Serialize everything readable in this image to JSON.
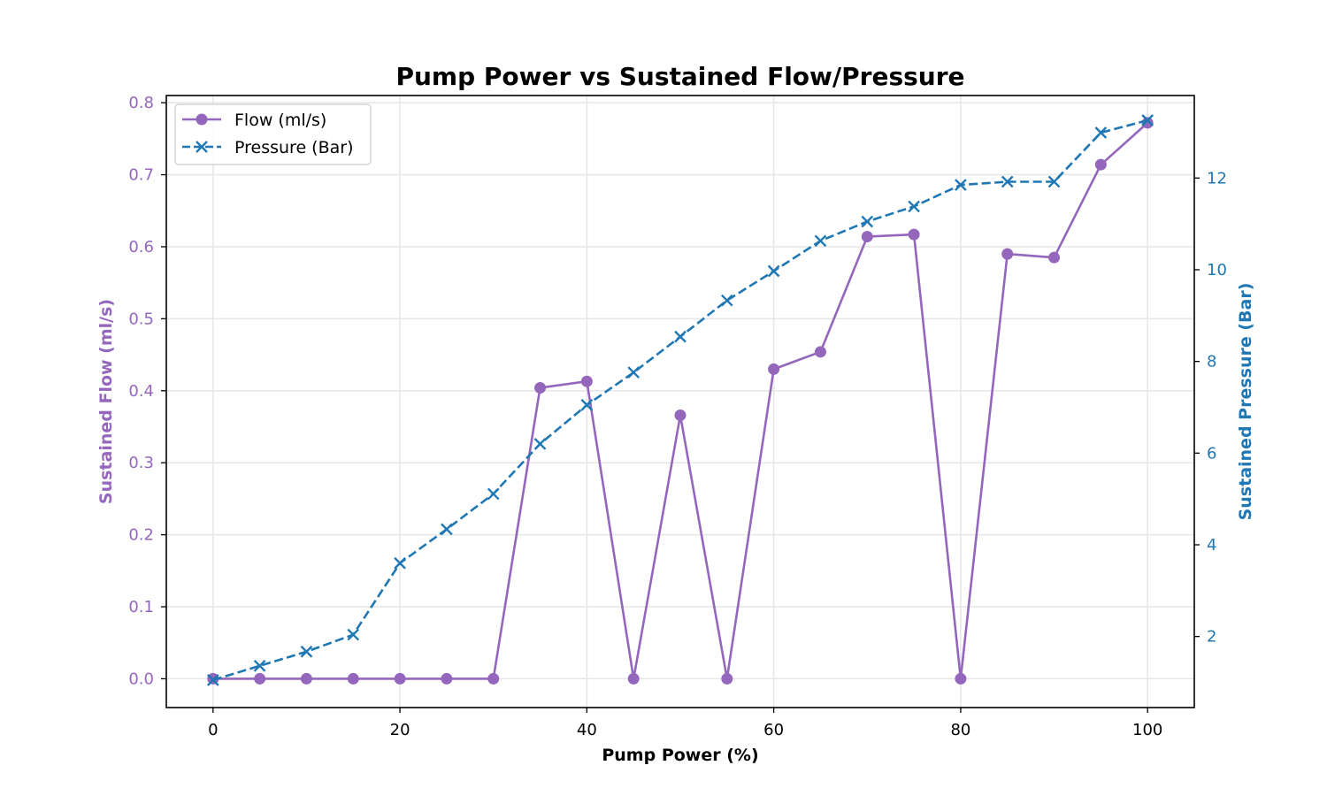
{
  "chart_data": {
    "type": "line",
    "title": "Pump Power vs Sustained Flow/Pressure",
    "xlabel": "Pump Power (%)",
    "ylabel_left": "Sustained Flow (ml/s)",
    "ylabel_right": "Sustained Pressure (Bar)",
    "x": [
      0,
      5,
      10,
      15,
      20,
      25,
      30,
      35,
      40,
      45,
      50,
      55,
      60,
      65,
      70,
      75,
      80,
      85,
      90,
      95,
      100
    ],
    "xlim": [
      -5,
      105
    ],
    "ylim_left": [
      -0.04,
      0.81
    ],
    "ylim_right": [
      0.45,
      13.8
    ],
    "xticks": [
      0,
      20,
      40,
      60,
      80,
      100
    ],
    "xtick_labels": [
      "0",
      "20",
      "40",
      "60",
      "80",
      "100"
    ],
    "yticks_left": [
      0.0,
      0.1,
      0.2,
      0.3,
      0.4,
      0.5,
      0.6,
      0.7,
      0.8
    ],
    "ytick_labels_left": [
      "0.0",
      "0.1",
      "0.2",
      "0.3",
      "0.4",
      "0.5",
      "0.6",
      "0.7",
      "0.8"
    ],
    "yticks_right": [
      2,
      4,
      6,
      8,
      10,
      12
    ],
    "ytick_labels_right": [
      "2",
      "4",
      "6",
      "8",
      "10",
      "12"
    ],
    "grid": true,
    "legend_position": "top-left",
    "series": [
      {
        "name": "Flow (ml/s)",
        "axis": "left",
        "color": "#9467bd",
        "marker": "circle",
        "linestyle": "solid",
        "values": [
          0.0,
          0.0,
          0.0,
          0.0,
          0.0,
          0.0,
          0.0,
          0.404,
          0.413,
          0.0,
          0.366,
          0.0,
          0.43,
          0.454,
          0.614,
          0.617,
          0.0,
          0.59,
          0.585,
          0.714,
          0.772
        ]
      },
      {
        "name": "Pressure (Bar)",
        "axis": "right",
        "color": "#1f77b4",
        "marker": "x",
        "linestyle": "dashed",
        "values": [
          1.05,
          1.36,
          1.67,
          2.04,
          3.6,
          4.34,
          5.11,
          6.2,
          7.05,
          7.76,
          8.54,
          9.33,
          9.97,
          10.63,
          11.05,
          11.38,
          11.85,
          11.92,
          11.92,
          12.99,
          13.26
        ]
      }
    ]
  }
}
